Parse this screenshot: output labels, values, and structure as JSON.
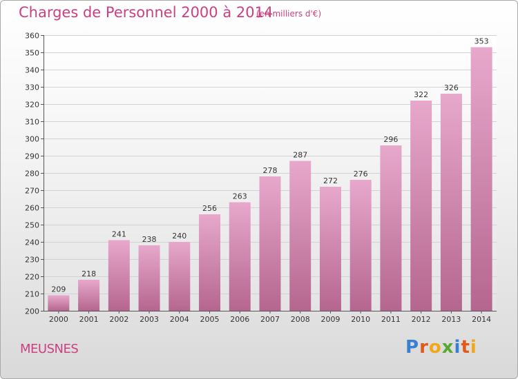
{
  "header": {
    "title": "Charges de Personnel 2000 à 2014",
    "subtitle": "(en milliers d'€)"
  },
  "footer": {
    "commune": "MEUSNES",
    "brand": "Proxiti"
  },
  "colors": {
    "title": "#cc3f80",
    "bar_top": "#e7a8cc",
    "bar_bottom": "#b5668f",
    "brand_letters": [
      "#3b7fd0",
      "#e05a1e",
      "#f0a81a",
      "#5aa832",
      "#3b7fd0",
      "#e05a1e",
      "#f0a81a"
    ]
  },
  "chart_data": {
    "type": "bar",
    "categories": [
      "2000",
      "2001",
      "2002",
      "2003",
      "2004",
      "2005",
      "2006",
      "2007",
      "2008",
      "2009",
      "2010",
      "2011",
      "2012",
      "2013",
      "2014"
    ],
    "values": [
      209,
      218,
      241,
      238,
      240,
      256,
      263,
      278,
      287,
      272,
      276,
      296,
      322,
      326,
      353
    ],
    "data_labels": [
      "209",
      "218",
      "241",
      "238",
      "240",
      "256",
      "263",
      "278",
      "287",
      "272",
      "276",
      "296",
      "322",
      "326",
      "353"
    ],
    "ylim": [
      200,
      360
    ],
    "yticks": [
      200,
      210,
      220,
      230,
      240,
      250,
      260,
      270,
      280,
      290,
      300,
      310,
      320,
      330,
      340,
      350,
      360
    ],
    "grid": true,
    "legend": "none"
  }
}
